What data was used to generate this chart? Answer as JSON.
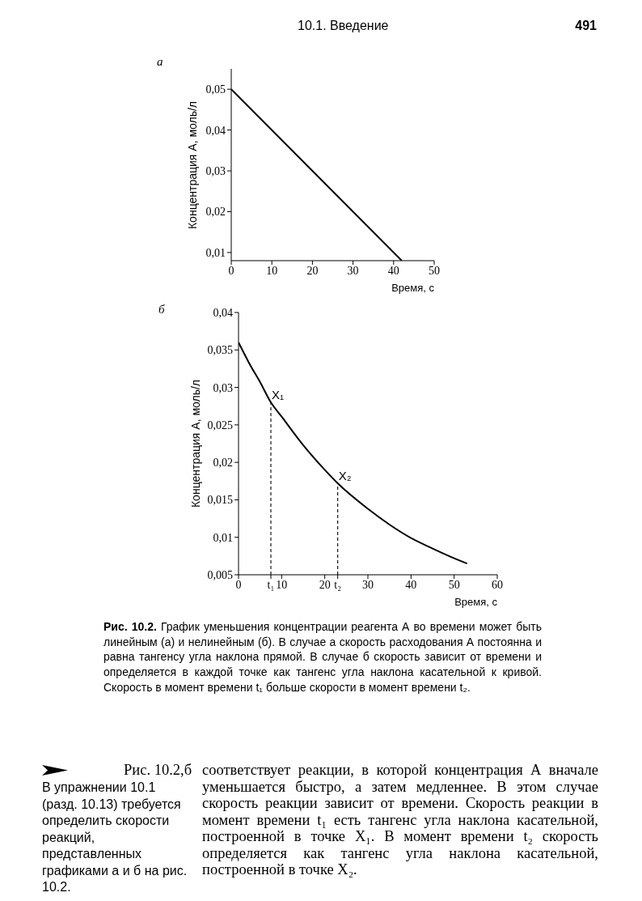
{
  "chart_data": [
    {
      "type": "line",
      "title": "а",
      "xlabel": "Время, с",
      "ylabel": "Концентрация А, моль/л",
      "series": [
        {
          "color": "#000000",
          "x": [
            0,
            42
          ],
          "values": [
            0.05,
            0.008
          ]
        }
      ],
      "line_style": "solid",
      "xlim": [
        0,
        50
      ],
      "xticks": [
        0,
        10,
        20,
        30,
        40,
        50
      ],
      "ylim": [
        0.008,
        0.055
      ],
      "yticks": [
        {
          "value": 0.01,
          "label": "0,01"
        },
        {
          "value": 0.02,
          "label": "0,02"
        },
        {
          "value": 0.03,
          "label": "0,03"
        },
        {
          "value": 0.04,
          "label": "0,04"
        },
        {
          "value": 0.05,
          "label": "0,05"
        }
      ],
      "annotations": [
        "10.1. Введение",
        "491"
      ]
    },
    {
      "type": "line",
      "title": "б",
      "xlabel": "Время, с",
      "ylabel": "Концентрация А, моль/л",
      "series": [
        {
          "color": "#000000",
          "x": [
            0,
            2.5,
            5,
            7.5,
            10,
            15,
            20,
            23,
            30,
            35,
            40,
            45,
            50,
            53
          ],
          "values": [
            0.036,
            0.0332,
            0.0307,
            0.028,
            0.0261,
            0.0223,
            0.019,
            0.0172,
            0.0138,
            0.0117,
            0.0099,
            0.0085,
            0.0072,
            0.0065
          ]
        },
        {
          "color": "#000000",
          "x": [
            7.5,
            7.5
          ],
          "values": [
            0.005,
            0.028
          ],
          "line_style": "dashed"
        },
        {
          "color": "#000000",
          "x": [
            23,
            23
          ],
          "values": [
            0.005,
            0.0172
          ],
          "line_style": "dashed"
        }
      ],
      "line_style": "solid",
      "xlim": [
        0,
        60
      ],
      "xticks": [
        0,
        {
          "value": 7.5,
          "label": "t₁"
        },
        10,
        20,
        {
          "value": 23,
          "label": "t₂"
        },
        30,
        40,
        50,
        60
      ],
      "ylim": [
        0.005,
        0.04
      ],
      "yticks": [
        {
          "value": 0.005,
          "label": "0,005"
        },
        {
          "value": 0.01,
          "label": "0,01"
        },
        {
          "value": 0.015,
          "label": "0,015"
        },
        {
          "value": 0.02,
          "label": "0,02"
        },
        {
          "value": 0.025,
          "label": "0,025"
        },
        {
          "value": 0.03,
          "label": "0,03"
        },
        {
          "value": 0.035,
          "label": "0,035"
        },
        {
          "value": 0.04,
          "label": "0,04"
        }
      ],
      "annotations": [
        {
          "text": "X₁",
          "x": 7.5,
          "y": 0.028
        },
        {
          "text": "X₂",
          "x": 23,
          "y": 0.0172
        },
        "Рис. 10.2.",
        "График уменьшения концентрации реагента А во времени может быть линейным (а) и нелинейным (б). В случае а скорость расходования А постоянна и равна тангенсу угла наклона прямой. В случае б скорость зависит от времени и определяется в каждой точке как тангенс угла наклона касательной к кривой. Скорость в момент времени t₁ больше скорости в момент времени t₂.",
        "Рис. 10.2,б",
        "соответствует реакции, в которой концентрация А вначале уменьшается быстро, а затем медленнее. В этом случае скорость реакции зависит от времени. Скорость реакции в момент времени t₁ есть тангенс угла наклона касательной, построенной в точке X₁. В момент времени t₂ скорость определяется как тангенс угла наклона касательной, построенной в точке X₂.",
        "В упражнении 10.1 (разд. 10.13) требуется определить скорости реакций, представленных графиками а и б на рис. 10.2."
      ]
    }
  ]
}
